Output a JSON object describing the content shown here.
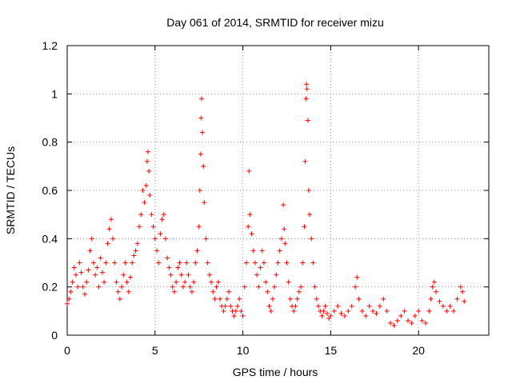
{
  "chart_data": {
    "type": "scatter",
    "title": "Day 061 of 2014, SRMTID for receiver mizu",
    "xlabel": "GPS time / hours",
    "ylabel": "SRMTID / TECUs",
    "xlim": [
      0,
      24
    ],
    "ylim": [
      0,
      1.2
    ],
    "xticks": [
      0,
      5,
      10,
      15,
      20
    ],
    "xtick_labels": [
      "0",
      "5",
      "10",
      "15",
      "20"
    ],
    "yticks": [
      0,
      0.2,
      0.4,
      0.6,
      0.8,
      1.0,
      1.2
    ],
    "ytick_labels": [
      "0",
      "0.2",
      "0.4",
      "0.6",
      "0.8",
      "1",
      "1.2"
    ],
    "grid": true,
    "marker": "+",
    "series": [
      {
        "name": "SRMTID",
        "color": "#ff0000",
        "points": [
          [
            0.0,
            0.13
          ],
          [
            0.1,
            0.15
          ],
          [
            0.2,
            0.18
          ],
          [
            0.3,
            0.22
          ],
          [
            0.4,
            0.28
          ],
          [
            0.5,
            0.25
          ],
          [
            0.6,
            0.2
          ],
          [
            0.7,
            0.3
          ],
          [
            0.8,
            0.26
          ],
          [
            0.9,
            0.2
          ],
          [
            1.0,
            0.17
          ],
          [
            1.1,
            0.22
          ],
          [
            1.2,
            0.27
          ],
          [
            1.3,
            0.35
          ],
          [
            1.4,
            0.4
          ],
          [
            1.5,
            0.3
          ],
          [
            1.6,
            0.25
          ],
          [
            1.7,
            0.28
          ],
          [
            1.8,
            0.2
          ],
          [
            1.9,
            0.32
          ],
          [
            2.0,
            0.26
          ],
          [
            2.1,
            0.22
          ],
          [
            2.2,
            0.3
          ],
          [
            2.3,
            0.38
          ],
          [
            2.4,
            0.44
          ],
          [
            2.5,
            0.48
          ],
          [
            2.6,
            0.4
          ],
          [
            2.7,
            0.3
          ],
          [
            2.8,
            0.22
          ],
          [
            2.9,
            0.18
          ],
          [
            3.0,
            0.15
          ],
          [
            3.1,
            0.2
          ],
          [
            3.2,
            0.25
          ],
          [
            3.3,
            0.3
          ],
          [
            3.4,
            0.22
          ],
          [
            3.5,
            0.18
          ],
          [
            3.6,
            0.24
          ],
          [
            3.7,
            0.3
          ],
          [
            3.8,
            0.33
          ],
          [
            3.9,
            0.35
          ],
          [
            4.0,
            0.38
          ],
          [
            4.1,
            0.45
          ],
          [
            4.2,
            0.5
          ],
          [
            4.3,
            0.6
          ],
          [
            4.4,
            0.55
          ],
          [
            4.5,
            0.62
          ],
          [
            4.55,
            0.72
          ],
          [
            4.6,
            0.76
          ],
          [
            4.65,
            0.68
          ],
          [
            4.7,
            0.58
          ],
          [
            4.8,
            0.5
          ],
          [
            4.9,
            0.45
          ],
          [
            5.0,
            0.4
          ],
          [
            5.1,
            0.35
          ],
          [
            5.2,
            0.3
          ],
          [
            5.3,
            0.42
          ],
          [
            5.4,
            0.48
          ],
          [
            5.5,
            0.5
          ],
          [
            5.6,
            0.4
          ],
          [
            5.7,
            0.32
          ],
          [
            5.8,
            0.28
          ],
          [
            5.9,
            0.25
          ],
          [
            6.0,
            0.2
          ],
          [
            6.1,
            0.18
          ],
          [
            6.2,
            0.22
          ],
          [
            6.3,
            0.28
          ],
          [
            6.4,
            0.3
          ],
          [
            6.5,
            0.25
          ],
          [
            6.6,
            0.2
          ],
          [
            6.7,
            0.22
          ],
          [
            6.8,
            0.3
          ],
          [
            6.9,
            0.25
          ],
          [
            7.0,
            0.2
          ],
          [
            7.1,
            0.18
          ],
          [
            7.2,
            0.22
          ],
          [
            7.3,
            0.3
          ],
          [
            7.4,
            0.35
          ],
          [
            7.5,
            0.45
          ],
          [
            7.55,
            0.6
          ],
          [
            7.6,
            0.75
          ],
          [
            7.62,
            0.9
          ],
          [
            7.65,
            0.98
          ],
          [
            7.7,
            0.84
          ],
          [
            7.75,
            0.7
          ],
          [
            7.8,
            0.55
          ],
          [
            7.9,
            0.4
          ],
          [
            8.0,
            0.3
          ],
          [
            8.1,
            0.25
          ],
          [
            8.2,
            0.22
          ],
          [
            8.3,
            0.18
          ],
          [
            8.4,
            0.15
          ],
          [
            8.5,
            0.2
          ],
          [
            8.6,
            0.22
          ],
          [
            8.7,
            0.15
          ],
          [
            8.8,
            0.12
          ],
          [
            8.9,
            0.1
          ],
          [
            9.0,
            0.12
          ],
          [
            9.1,
            0.15
          ],
          [
            9.2,
            0.18
          ],
          [
            9.3,
            0.12
          ],
          [
            9.4,
            0.1
          ],
          [
            9.5,
            0.08
          ],
          [
            9.6,
            0.1
          ],
          [
            9.7,
            0.12
          ],
          [
            9.8,
            0.15
          ],
          [
            9.9,
            0.1
          ],
          [
            10.0,
            0.08
          ],
          [
            10.1,
            0.2
          ],
          [
            10.2,
            0.3
          ],
          [
            10.3,
            0.45
          ],
          [
            10.35,
            0.68
          ],
          [
            10.4,
            0.5
          ],
          [
            10.5,
            0.42
          ],
          [
            10.6,
            0.35
          ],
          [
            10.7,
            0.3
          ],
          [
            10.8,
            0.25
          ],
          [
            10.9,
            0.2
          ],
          [
            11.0,
            0.28
          ],
          [
            11.1,
            0.35
          ],
          [
            11.2,
            0.3
          ],
          [
            11.3,
            0.22
          ],
          [
            11.4,
            0.18
          ],
          [
            11.5,
            0.12
          ],
          [
            11.6,
            0.1
          ],
          [
            11.7,
            0.15
          ],
          [
            11.8,
            0.2
          ],
          [
            11.9,
            0.25
          ],
          [
            12.0,
            0.3
          ],
          [
            12.1,
            0.35
          ],
          [
            12.2,
            0.4
          ],
          [
            12.3,
            0.54
          ],
          [
            12.35,
            0.44
          ],
          [
            12.4,
            0.38
          ],
          [
            12.5,
            0.3
          ],
          [
            12.6,
            0.22
          ],
          [
            12.7,
            0.15
          ],
          [
            12.8,
            0.12
          ],
          [
            12.9,
            0.1
          ],
          [
            13.0,
            0.12
          ],
          [
            13.1,
            0.15
          ],
          [
            13.2,
            0.18
          ],
          [
            13.3,
            0.2
          ],
          [
            13.4,
            0.3
          ],
          [
            13.5,
            0.45
          ],
          [
            13.55,
            0.72
          ],
          [
            13.6,
            0.98
          ],
          [
            13.62,
            1.04
          ],
          [
            13.65,
            1.02
          ],
          [
            13.7,
            0.89
          ],
          [
            13.75,
            0.6
          ],
          [
            13.8,
            0.5
          ],
          [
            13.9,
            0.4
          ],
          [
            14.0,
            0.3
          ],
          [
            14.1,
            0.2
          ],
          [
            14.2,
            0.15
          ],
          [
            14.3,
            0.12
          ],
          [
            14.4,
            0.1
          ],
          [
            14.5,
            0.08
          ],
          [
            14.6,
            0.1
          ],
          [
            14.7,
            0.12
          ],
          [
            14.8,
            0.09
          ],
          [
            14.9,
            0.07
          ],
          [
            15.0,
            0.08
          ],
          [
            15.2,
            0.1
          ],
          [
            15.4,
            0.12
          ],
          [
            15.6,
            0.09
          ],
          [
            15.8,
            0.08
          ],
          [
            16.0,
            0.1
          ],
          [
            16.2,
            0.12
          ],
          [
            16.4,
            0.2
          ],
          [
            16.5,
            0.24
          ],
          [
            16.6,
            0.15
          ],
          [
            16.8,
            0.1
          ],
          [
            17.0,
            0.08
          ],
          [
            17.2,
            0.12
          ],
          [
            17.4,
            0.1
          ],
          [
            17.6,
            0.09
          ],
          [
            17.8,
            0.12
          ],
          [
            18.0,
            0.15
          ],
          [
            18.2,
            0.1
          ],
          [
            18.4,
            0.05
          ],
          [
            18.6,
            0.04
          ],
          [
            18.8,
            0.06
          ],
          [
            19.0,
            0.08
          ],
          [
            19.2,
            0.1
          ],
          [
            19.4,
            0.06
          ],
          [
            19.6,
            0.05
          ],
          [
            19.8,
            0.08
          ],
          [
            20.0,
            0.1
          ],
          [
            20.2,
            0.06
          ],
          [
            20.4,
            0.05
          ],
          [
            20.6,
            0.1
          ],
          [
            20.7,
            0.15
          ],
          [
            20.8,
            0.2
          ],
          [
            20.9,
            0.22
          ],
          [
            21.0,
            0.18
          ],
          [
            21.2,
            0.14
          ],
          [
            21.4,
            0.12
          ],
          [
            21.6,
            0.1
          ],
          [
            21.8,
            0.12
          ],
          [
            22.0,
            0.1
          ],
          [
            22.2,
            0.15
          ],
          [
            22.4,
            0.2
          ],
          [
            22.5,
            0.18
          ],
          [
            22.6,
            0.14
          ]
        ]
      }
    ]
  }
}
